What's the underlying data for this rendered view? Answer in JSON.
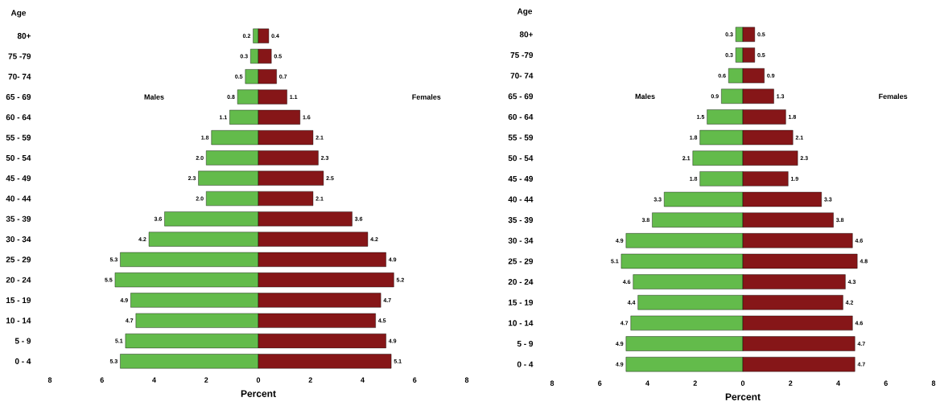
{
  "chart_data": [
    {
      "type": "bar",
      "orientation": "horizontal",
      "ylabel": "Age",
      "xlabel": "Percent",
      "legend": false,
      "grid": false,
      "categories": [
        "80+",
        "75 -79",
        "70- 74",
        "65 - 69",
        "60 - 64",
        "55 - 59",
        "50 - 54",
        "45 - 49",
        "40 - 44",
        "35 - 39",
        "30 - 34",
        "25 - 29",
        "20 - 24",
        "15 - 19",
        "10 - 14",
        "5 - 9",
        "0 - 4"
      ],
      "xlim": [
        8,
        0
      ],
      "xticks": [
        8,
        6,
        4,
        2,
        0
      ],
      "series": [
        {
          "name": "Males",
          "color": "#63bb4b",
          "values": [
            0.2,
            0.3,
            0.5,
            0.8,
            1.1,
            1.8,
            2.0,
            2.3,
            2.0,
            3.6,
            4.2,
            5.3,
            5.5,
            4.9,
            4.7,
            5.1,
            5.3
          ],
          "value_labels": [
            "0.2",
            "0.3",
            "0.5",
            "0.8",
            "1.1",
            "1.8",
            "2.0",
            "2.3",
            "2.0",
            "3.6",
            "4.2",
            "5.3",
            "5.5",
            "4.9",
            "4.7",
            "5.1",
            "5.3"
          ]
        }
      ]
    },
    {
      "type": "bar",
      "orientation": "horizontal",
      "legend": false,
      "grid": false,
      "tick_labels": "x",
      "categories": [
        null,
        null,
        null,
        null,
        null,
        null,
        null,
        null,
        null,
        null,
        null,
        null,
        null,
        null,
        null,
        null,
        null
      ],
      "xlim": [
        0,
        8
      ],
      "xticks": [
        2,
        4,
        6,
        8
      ],
      "series": [
        {
          "name": "Females",
          "color": "#861618",
          "values": [
            0.4,
            0.5,
            0.7,
            1.1,
            1.6,
            2.1,
            2.3,
            2.5,
            2.1,
            3.6,
            4.2,
            4.9,
            5.2,
            4.7,
            4.5,
            4.9,
            5.1
          ],
          "value_labels": [
            "0.4",
            "0.5",
            "0.7",
            "1.1",
            "1.6",
            "2.1",
            "2.3",
            "2.5",
            "2.1",
            "3.6",
            "4.2",
            "4.9",
            "5.2",
            "4.7",
            "4.5",
            "4.9",
            "5.1"
          ]
        }
      ]
    },
    {
      "type": "bar",
      "orientation": "horizontal",
      "ylabel": "Age",
      "xlabel": "Percent",
      "legend": false,
      "grid": false,
      "categories": [
        "80+",
        "75 -79",
        "70- 74",
        "65 - 69",
        "60 - 64",
        "55 - 59",
        "50 - 54",
        "45 - 49",
        "40 - 44",
        "35 - 39",
        "30 - 34",
        "25 - 29",
        "20 - 24",
        "15 - 19",
        "10 - 14",
        "5 - 9",
        "0 - 4"
      ],
      "xlim": [
        8,
        0
      ],
      "xticks": [
        8,
        6,
        4,
        2,
        0
      ],
      "series": [
        {
          "name": "Males",
          "color": "#63bb4b",
          "values": [
            0.3,
            0.3,
            0.6,
            0.9,
            1.5,
            1.8,
            2.1,
            1.8,
            3.3,
            3.8,
            4.9,
            5.1,
            4.6,
            4.4,
            4.7,
            4.9,
            4.9
          ],
          "value_labels": [
            "0.3",
            "0.3",
            "0.6",
            "0.9",
            "1.5",
            "1.8",
            "2.1",
            "1.8",
            "3.3",
            "3.8",
            "4.9",
            "5.1",
            "4.6",
            "4.4",
            "4.7",
            "4.9",
            "4.9"
          ]
        }
      ]
    },
    {
      "type": "bar",
      "orientation": "horizontal",
      "legend": false,
      "grid": false,
      "tick_labels": "x",
      "categories": [
        null,
        null,
        null,
        null,
        null,
        null,
        null,
        null,
        null,
        null,
        null,
        null,
        null,
        null,
        null,
        null,
        null
      ],
      "xlim": [
        0,
        8
      ],
      "xticks": [
        2,
        4,
        6,
        8
      ],
      "series": [
        {
          "name": "Females",
          "color": "#861618",
          "values": [
            0.5,
            0.5,
            0.9,
            1.3,
            1.8,
            2.1,
            2.3,
            1.9,
            3.3,
            3.8,
            4.6,
            4.8,
            4.3,
            4.2,
            4.6,
            4.7,
            4.7
          ],
          "value_labels": [
            "0.5",
            "0.5",
            "0.9",
            "1.3",
            "1.8",
            "2.1",
            "2.3",
            "1.9",
            "3.3",
            "3.8",
            "4.6",
            "4.8",
            "4.3",
            "4.2",
            "4.6",
            "4.7",
            "4.7"
          ]
        }
      ]
    }
  ]
}
